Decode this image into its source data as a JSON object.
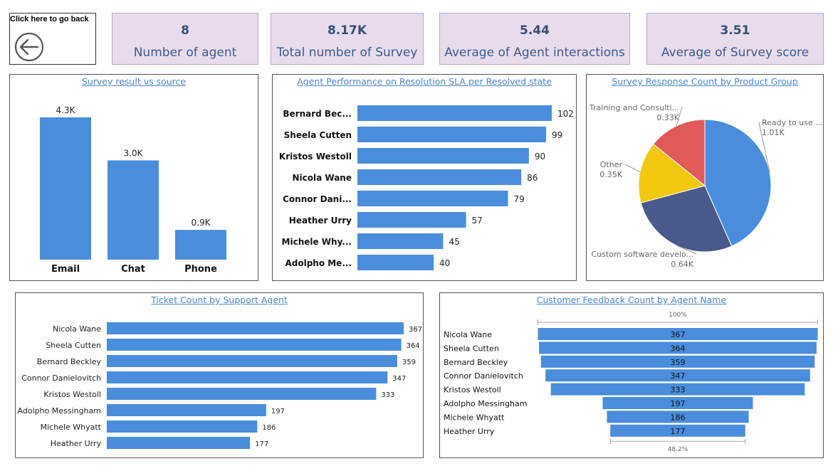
{
  "back_button": {
    "label": "Click here to go back"
  },
  "kpis": [
    {
      "value": "8",
      "label": "Number of agent"
    },
    {
      "value": "8.17K",
      "label": "Total number of Survey"
    },
    {
      "value": "5.44",
      "label": "Average of Agent interactions"
    },
    {
      "value": "3.51",
      "label": "Average of Survey score"
    }
  ],
  "colors": {
    "bar": "#4a8ddc",
    "kpi_bg": "#e8dcec",
    "title": "#4a86cf",
    "pie": [
      "#4a8ddc",
      "#4a5a8a",
      "#f2c811",
      "#e05a5a"
    ]
  },
  "chart_data": [
    {
      "id": "survey_source",
      "type": "bar",
      "title": "Survey result vs source",
      "categories": [
        "Email",
        "Chat",
        "Phone"
      ],
      "values": [
        4.3,
        3.0,
        0.9
      ],
      "data_labels": [
        "4.3K",
        "3.0K",
        "0.9K"
      ],
      "ylim": [
        0,
        4.3
      ]
    },
    {
      "id": "sla_performance",
      "type": "bar",
      "orientation": "horizontal",
      "title": "Agent Performance on Resolution SLA per Resolved state",
      "categories": [
        "Bernard Bec...",
        "Sheela Cutten",
        "Kristos Westoll",
        "Nicola Wane",
        "Connor Dani...",
        "Heather Urry",
        "Michele Why...",
        "Adolpho Me..."
      ],
      "values": [
        102,
        99,
        90,
        86,
        79,
        57,
        45,
        40
      ],
      "xlim": [
        0,
        102
      ]
    },
    {
      "id": "product_group",
      "type": "pie",
      "title": "Survey Response Count by Product Group",
      "labels": [
        "Ready to use ...",
        "Custom software develo...",
        "Other",
        "Training and Consulti..."
      ],
      "values": [
        1.01,
        0.64,
        0.35,
        0.33
      ],
      "data_labels": [
        "1.01K",
        "0.64K",
        "0.35K",
        "0.33K"
      ],
      "start_angle_deg": 0
    },
    {
      "id": "ticket_count",
      "type": "bar",
      "orientation": "horizontal",
      "title": "Ticket Count by Support Agent",
      "categories": [
        "Nicola Wane",
        "Sheela Cutten",
        "Bernard Beckley",
        "Connor Danielovitch",
        "Kristos Westoll",
        "Adolpho Messingham",
        "Michele Whyatt",
        "Heather Urry"
      ],
      "values": [
        367,
        364,
        359,
        347,
        333,
        197,
        186,
        177
      ],
      "xlim": [
        0,
        367
      ]
    },
    {
      "id": "feedback_funnel",
      "type": "funnel",
      "title": "Customer Feedback Count by Agent Name",
      "categories": [
        "Nicola Wane",
        "Sheela Cutten",
        "Bernard Beckley",
        "Connor Danielovitch",
        "Kristos Westoll",
        "Adolpho Messingham",
        "Michele Whyatt",
        "Heather Urry"
      ],
      "values": [
        367,
        364,
        359,
        347,
        333,
        197,
        186,
        177
      ],
      "top_label": "100%",
      "bottom_label": "48.2%"
    }
  ]
}
